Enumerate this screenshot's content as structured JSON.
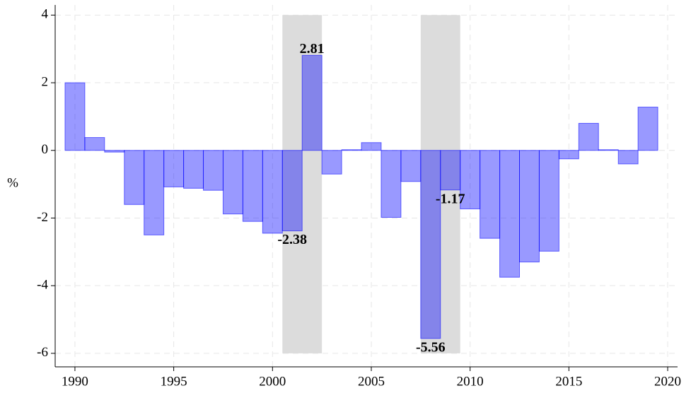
{
  "chart_data": {
    "type": "bar",
    "y_label": "%",
    "x": [
      1990,
      1991,
      1992,
      1993,
      1994,
      1995,
      1996,
      1997,
      1998,
      1999,
      2000,
      2001,
      2002,
      2003,
      2004,
      2005,
      2006,
      2007,
      2008,
      2009,
      2010,
      2011,
      2012,
      2013,
      2014,
      2015,
      2016,
      2017,
      2018,
      2019
    ],
    "values": [
      2.0,
      0.38,
      -0.05,
      -1.6,
      -2.5,
      -1.08,
      -1.12,
      -1.18,
      -1.88,
      -2.1,
      -2.45,
      -2.38,
      2.81,
      -0.7,
      0.02,
      0.23,
      -1.98,
      -0.92,
      -5.56,
      -1.17,
      -1.73,
      -2.6,
      -3.75,
      -3.3,
      -2.98,
      -0.25,
      0.8,
      0.02,
      -0.4,
      1.28
    ],
    "value_labels": [
      null,
      null,
      null,
      null,
      null,
      null,
      null,
      null,
      null,
      null,
      null,
      "-2.38",
      "2.81",
      null,
      null,
      null,
      null,
      null,
      "-5.56",
      "-1.17",
      null,
      null,
      null,
      null,
      null,
      null,
      null,
      null,
      null,
      null
    ],
    "color": "#0000ff",
    "shaded_ranges": [
      [
        2000.5,
        2002.5
      ],
      [
        2007.5,
        2009.5
      ]
    ],
    "shade_color": "#dcdcdc",
    "xlim": [
      1989,
      2020.5
    ],
    "xticks": [
      1990,
      1995,
      2000,
      2005,
      2010,
      2015,
      2020
    ],
    "ylim": [
      -6.4,
      4.3
    ],
    "yticks": [
      -6,
      -4,
      -2,
      0,
      2,
      4
    ],
    "grid": true
  }
}
